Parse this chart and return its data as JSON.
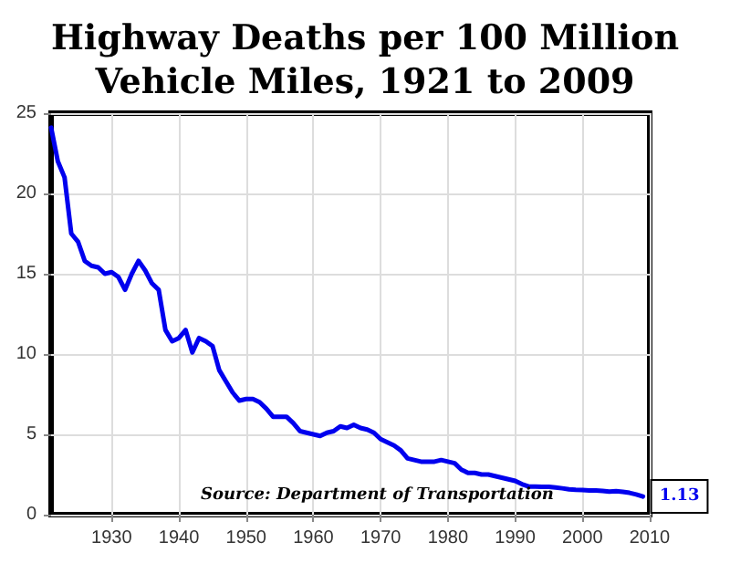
{
  "chart_data": {
    "type": "line",
    "title": "Highway Deaths per 100 Million\nVehicle Miles, 1921 to 2009",
    "x": [
      1921,
      1922,
      1923,
      1924,
      1925,
      1926,
      1927,
      1928,
      1929,
      1930,
      1931,
      1932,
      1933,
      1934,
      1935,
      1936,
      1937,
      1938,
      1939,
      1940,
      1941,
      1942,
      1943,
      1944,
      1945,
      1946,
      1947,
      1948,
      1949,
      1950,
      1951,
      1952,
      1953,
      1954,
      1955,
      1956,
      1957,
      1958,
      1959,
      1960,
      1961,
      1962,
      1963,
      1964,
      1965,
      1966,
      1967,
      1968,
      1969,
      1970,
      1971,
      1972,
      1973,
      1974,
      1975,
      1976,
      1977,
      1978,
      1979,
      1980,
      1981,
      1982,
      1983,
      1984,
      1985,
      1986,
      1987,
      1988,
      1989,
      1990,
      1991,
      1992,
      1993,
      1994,
      1995,
      1996,
      1997,
      1998,
      1999,
      2000,
      2001,
      2002,
      2003,
      2004,
      2005,
      2006,
      2007,
      2008,
      2009
    ],
    "series": [
      {
        "color": "#0000ee",
        "values": [
          24.1,
          22.0,
          21.0,
          17.5,
          17.0,
          15.8,
          15.5,
          15.4,
          15.0,
          15.1,
          14.8,
          14.0,
          15.0,
          15.8,
          15.2,
          14.4,
          14.0,
          11.5,
          10.8,
          11.0,
          11.5,
          10.1,
          11.0,
          10.8,
          10.5,
          9.0,
          8.3,
          7.6,
          7.1,
          7.2,
          7.2,
          7.0,
          6.6,
          6.1,
          6.1,
          6.1,
          5.7,
          5.2,
          5.1,
          5.0,
          4.9,
          5.1,
          5.2,
          5.5,
          5.4,
          5.6,
          5.4,
          5.3,
          5.1,
          4.7,
          4.5,
          4.3,
          4.0,
          3.5,
          3.4,
          3.3,
          3.3,
          3.3,
          3.4,
          3.3,
          3.2,
          2.8,
          2.6,
          2.6,
          2.5,
          2.5,
          2.4,
          2.3,
          2.2,
          2.1,
          1.9,
          1.75,
          1.75,
          1.73,
          1.73,
          1.69,
          1.64,
          1.58,
          1.55,
          1.53,
          1.51,
          1.51,
          1.48,
          1.44,
          1.46,
          1.42,
          1.36,
          1.26,
          1.13
        ]
      }
    ],
    "xlim": [
      1921,
      2010
    ],
    "xticks": [
      1930,
      1940,
      1950,
      1960,
      1970,
      1980,
      1990,
      2000,
      2010
    ],
    "ylim": [
      0,
      25
    ],
    "yticks": [
      0,
      5,
      10,
      15,
      20,
      25
    ],
    "grid": true,
    "marker": "none",
    "line_style": "solid",
    "annotations": [
      {
        "text": "1.13",
        "x": 2009,
        "y": 1.13
      },
      "Source: Department of Transportation"
    ]
  }
}
